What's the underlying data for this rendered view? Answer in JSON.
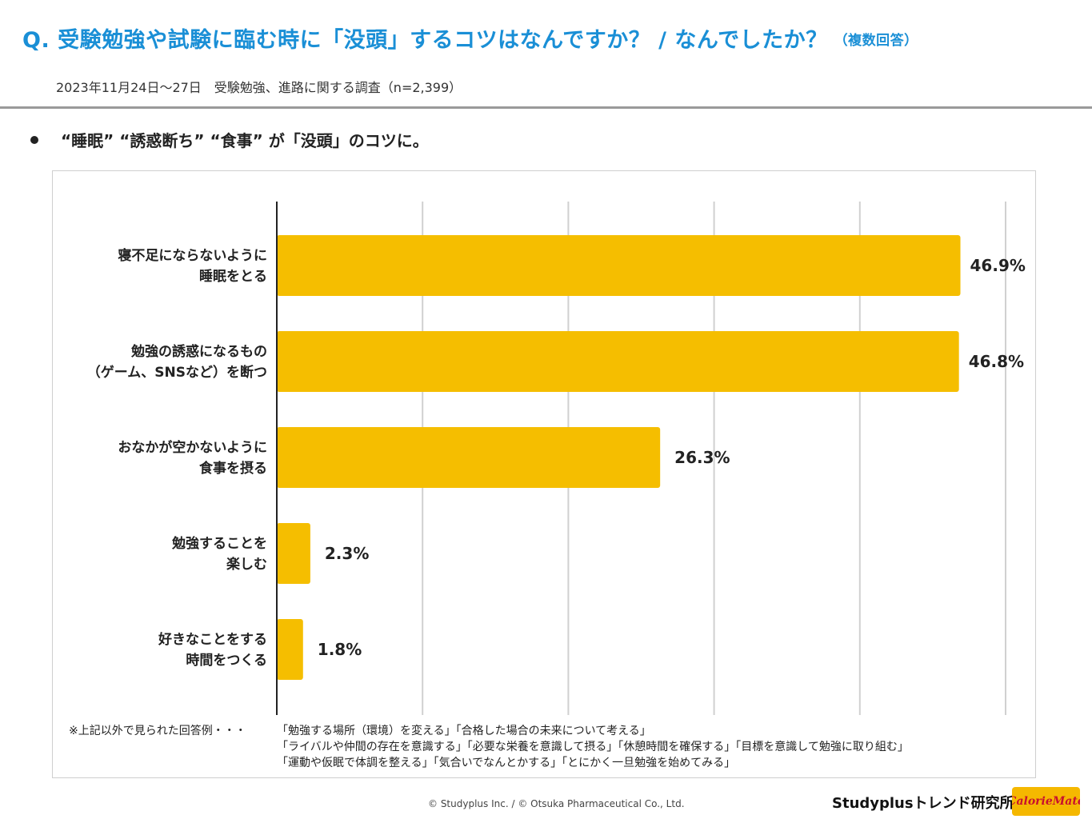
{
  "header": {
    "question": "Q. 受験勉強や試験に臨む時に「没頭」するコツはなんですか？ / なんでしたか？",
    "question_note": "（複数回答）",
    "survey": "2023年11月24日～27日　受験勉強、進路に関する調査（n=2,399）"
  },
  "headline": "“睡眠” “誘惑断ち” “食事” が「没頭」のコツに。",
  "chart_data": {
    "type": "bar",
    "orientation": "horizontal",
    "categories": [
      [
        "寝不足にならないように",
        "睡眠をとる"
      ],
      [
        "勉強の誘惑になるもの",
        "（ゲーム、SNSなど）を断つ"
      ],
      [
        "おなかが空かないように",
        "食事を摂る"
      ],
      [
        "勉強することを",
        "楽しむ"
      ],
      [
        "好きなことをする",
        "時間をつくる"
      ]
    ],
    "values": [
      46.9,
      46.8,
      26.3,
      2.3,
      1.8
    ],
    "value_labels": [
      "46.9%",
      "46.8%",
      "26.3%",
      "2.3%",
      "1.8%"
    ],
    "xlim": [
      0,
      50
    ],
    "gridlines": [
      10,
      20,
      30,
      40,
      50
    ],
    "bar_color": "#f5be00",
    "grid": true
  },
  "note": {
    "label": "※上記以外で見られた回答例・・・",
    "lines": [
      "「勉強する場所（環境）を変える」「合格した場合の未来について考える」",
      "「ライバルや仲間の存在を意識する」「必要な栄養を意識して摂る」「休憩時間を確保する」「目標を意識して勉強に取り組む」",
      "「運動や仮眠で体調を整える」「気合いでなんとかする」「とにかく一旦勉強を始めてみる」"
    ]
  },
  "footer": {
    "copyright": "© Studyplus Inc.  / © Otsuka Pharmaceutical Co., Ltd.",
    "brand": "Studyplusトレンド研究所",
    "logo_text": "CalorieMate"
  },
  "colors": {
    "accent": "#1a8fd6",
    "bar": "#f5be00",
    "rule": "#9a9a9a"
  }
}
